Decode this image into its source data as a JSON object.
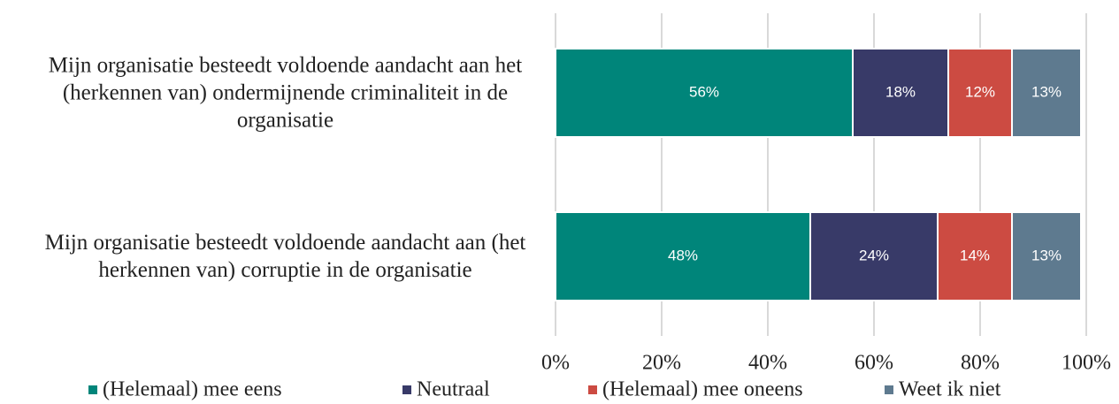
{
  "chart_data": {
    "type": "stacked-barh",
    "categories": [
      "Mijn organisatie besteedt voldoende aandacht aan het (herkennen van) ondermijnende criminaliteit in de organisatie",
      "Mijn organisatie besteedt voldoende aandacht aan (het herkennen van) corruptie in de organisatie"
    ],
    "series": [
      {
        "name": "(Helemaal) mee eens",
        "color": "#00857a",
        "values": [
          56,
          48
        ],
        "value_labels": [
          "56%",
          "48%"
        ]
      },
      {
        "name": "Neutraal",
        "color": "#383a68",
        "values": [
          18,
          24
        ],
        "value_labels": [
          "18%",
          "24%"
        ]
      },
      {
        "name": "(Helemaal) mee oneens",
        "color": "#cc4b42",
        "values": [
          12,
          14
        ],
        "value_labels": [
          "12%",
          "14%"
        ]
      },
      {
        "name": "Weet ik niet",
        "color": "#5e7a8f",
        "values": [
          13,
          13
        ],
        "value_labels": [
          "13%",
          "13%"
        ]
      }
    ],
    "xlim": [
      0,
      100
    ],
    "xticks": [
      {
        "value": 0,
        "label": "0%"
      },
      {
        "value": 20,
        "label": "20%"
      },
      {
        "value": 40,
        "label": "40%"
      },
      {
        "value": 60,
        "label": "60%"
      },
      {
        "value": 80,
        "label": "80%"
      },
      {
        "value": 100,
        "label": "100%"
      }
    ],
    "grid": true,
    "legend": "bottom"
  }
}
